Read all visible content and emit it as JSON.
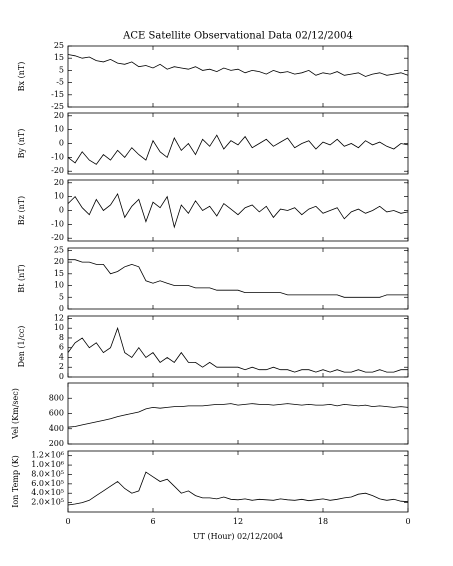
{
  "title": "ACE Satellite Observational Data   02/12/2004",
  "xlabel": "UT (Hour)   02/12/2004",
  "chart_data": [
    {
      "type": "line",
      "ylabel": "Bx (nT)",
      "color": "#000000",
      "x": [
        0,
        0.5,
        1,
        1.5,
        2,
        2.5,
        3,
        3.5,
        4,
        4.5,
        5,
        5.5,
        6,
        6.5,
        7,
        7.5,
        8,
        8.5,
        9,
        9.5,
        10,
        10.5,
        11,
        11.5,
        12,
        12.5,
        13,
        13.5,
        14,
        14.5,
        15,
        15.5,
        16,
        16.5,
        17,
        17.5,
        18,
        18.5,
        19,
        19.5,
        20,
        20.5,
        21,
        21.5,
        22,
        22.5,
        23,
        23.5,
        24
      ],
      "values": [
        18,
        17,
        15,
        16,
        13,
        12,
        14,
        11,
        10,
        12,
        8,
        9,
        7,
        10,
        6,
        8,
        7,
        6,
        8,
        5,
        6,
        4,
        7,
        5,
        6,
        3,
        5,
        4,
        2,
        5,
        3,
        4,
        2,
        3,
        5,
        1,
        3,
        2,
        4,
        1,
        2,
        3,
        0,
        2,
        3,
        1,
        2,
        3,
        1
      ],
      "xlim": [
        0,
        24
      ],
      "ylim": [
        -25,
        25
      ],
      "yticks": [
        -25,
        -15,
        -5,
        5,
        15,
        25
      ]
    },
    {
      "type": "line",
      "ylabel": "By (nT)",
      "color": "#000000",
      "x": [
        0,
        0.5,
        1,
        1.5,
        2,
        2.5,
        3,
        3.5,
        4,
        4.5,
        5,
        5.5,
        6,
        6.5,
        7,
        7.5,
        8,
        8.5,
        9,
        9.5,
        10,
        10.5,
        11,
        11.5,
        12,
        12.5,
        13,
        13.5,
        14,
        14.5,
        15,
        15.5,
        16,
        16.5,
        17,
        17.5,
        18,
        18.5,
        19,
        19.5,
        20,
        20.5,
        21,
        21.5,
        22,
        22.5,
        23,
        23.5,
        24
      ],
      "values": [
        -10,
        -14,
        -6,
        -12,
        -15,
        -8,
        -12,
        -5,
        -10,
        -3,
        -8,
        -12,
        2,
        -6,
        -10,
        4,
        -5,
        0,
        -8,
        3,
        -2,
        6,
        -4,
        2,
        -1,
        5,
        -3,
        0,
        3,
        -2,
        1,
        4,
        -3,
        0,
        2,
        -4,
        1,
        -1,
        3,
        -2,
        0,
        -3,
        2,
        -1,
        1,
        -2,
        -4,
        0,
        -1
      ],
      "xlim": [
        0,
        24
      ],
      "ylim": [
        -22,
        22
      ],
      "yticks": [
        -20,
        -10,
        0,
        10,
        20
      ]
    },
    {
      "type": "line",
      "ylabel": "Bz (nT)",
      "color": "#000000",
      "x": [
        0,
        0.5,
        1,
        1.5,
        2,
        2.5,
        3,
        3.5,
        4,
        4.5,
        5,
        5.5,
        6,
        6.5,
        7,
        7.5,
        8,
        8.5,
        9,
        9.5,
        10,
        10.5,
        11,
        11.5,
        12,
        12.5,
        13,
        13.5,
        14,
        14.5,
        15,
        15.5,
        16,
        16.5,
        17,
        17.5,
        18,
        18.5,
        19,
        19.5,
        20,
        20.5,
        21,
        21.5,
        22,
        22.5,
        23,
        23.5,
        24
      ],
      "values": [
        5,
        10,
        2,
        -3,
        8,
        0,
        4,
        12,
        -5,
        3,
        8,
        -8,
        6,
        2,
        10,
        -12,
        4,
        -2,
        7,
        0,
        3,
        -4,
        5,
        1,
        -3,
        2,
        4,
        -1,
        3,
        -5,
        1,
        0,
        2,
        -3,
        1,
        3,
        -2,
        0,
        2,
        -6,
        -1,
        1,
        -2,
        0,
        3,
        -1,
        0,
        -2,
        -1
      ],
      "xlim": [
        0,
        24
      ],
      "ylim": [
        -22,
        22
      ],
      "yticks": [
        -20,
        -10,
        0,
        10,
        20
      ]
    },
    {
      "type": "line",
      "ylabel": "Bt (nT)",
      "color": "#000000",
      "x": [
        0,
        0.5,
        1,
        1.5,
        2,
        2.5,
        3,
        3.5,
        4,
        4.5,
        5,
        5.5,
        6,
        6.5,
        7,
        7.5,
        8,
        8.5,
        9,
        9.5,
        10,
        10.5,
        11,
        11.5,
        12,
        12.5,
        13,
        13.5,
        14,
        14.5,
        15,
        15.5,
        16,
        16.5,
        17,
        17.5,
        18,
        18.5,
        19,
        19.5,
        20,
        20.5,
        21,
        21.5,
        22,
        22.5,
        23,
        23.5,
        24
      ],
      "values": [
        21,
        21,
        20,
        20,
        19,
        19,
        15,
        16,
        18,
        19,
        18,
        12,
        11,
        12,
        11,
        10,
        10,
        10,
        9,
        9,
        9,
        8,
        8,
        8,
        8,
        7,
        7,
        7,
        7,
        7,
        7,
        6,
        6,
        6,
        6,
        6,
        6,
        6,
        6,
        5,
        5,
        5,
        5,
        5,
        5,
        6,
        6,
        6,
        6
      ],
      "xlim": [
        0,
        24
      ],
      "ylim": [
        0,
        26
      ],
      "yticks": [
        0,
        5,
        10,
        15,
        20,
        25
      ]
    },
    {
      "type": "line",
      "ylabel": "Den (1/cc)",
      "color": "#000000",
      "x": [
        0,
        0.5,
        1,
        1.5,
        2,
        2.5,
        3,
        3.5,
        4,
        4.5,
        5,
        5.5,
        6,
        6.5,
        7,
        7.5,
        8,
        8.5,
        9,
        9.5,
        10,
        10.5,
        11,
        11.5,
        12,
        12.5,
        13,
        13.5,
        14,
        14.5,
        15,
        15.5,
        16,
        16.5,
        17,
        17.5,
        18,
        18.5,
        19,
        19.5,
        20,
        20.5,
        21,
        21.5,
        22,
        22.5,
        23,
        23.5,
        24
      ],
      "values": [
        5,
        7,
        8,
        6,
        7,
        5,
        6,
        10,
        5,
        4,
        6,
        4,
        5,
        3,
        4,
        3,
        5,
        3,
        3,
        2,
        3,
        2,
        2,
        2,
        2,
        1.5,
        2,
        1.5,
        1.5,
        2,
        1.5,
        1.5,
        1,
        1.5,
        1.5,
        1,
        1.5,
        1,
        1.5,
        1,
        1,
        1.5,
        1,
        1,
        1.5,
        1,
        1,
        1.5,
        1.5
      ],
      "xlim": [
        0,
        24
      ],
      "ylim": [
        0,
        12.5
      ],
      "yticks": [
        0,
        2,
        4,
        6,
        8,
        10,
        12
      ]
    },
    {
      "type": "line",
      "ylabel": "Vel (Km/sec)",
      "color": "#000000",
      "x": [
        0,
        0.5,
        1,
        1.5,
        2,
        2.5,
        3,
        3.5,
        4,
        4.5,
        5,
        5.5,
        6,
        6.5,
        7,
        7.5,
        8,
        8.5,
        9,
        9.5,
        10,
        10.5,
        11,
        11.5,
        12,
        12.5,
        13,
        13.5,
        14,
        14.5,
        15,
        15.5,
        16,
        16.5,
        17,
        17.5,
        18,
        18.5,
        19,
        19.5,
        20,
        20.5,
        21,
        21.5,
        22,
        22.5,
        23,
        23.5,
        24
      ],
      "values": [
        420,
        430,
        450,
        470,
        490,
        510,
        530,
        560,
        580,
        600,
        620,
        660,
        680,
        670,
        680,
        690,
        690,
        700,
        700,
        700,
        710,
        720,
        720,
        730,
        710,
        720,
        730,
        720,
        720,
        710,
        720,
        730,
        720,
        710,
        720,
        710,
        710,
        720,
        700,
        720,
        710,
        700,
        710,
        690,
        700,
        690,
        680,
        690,
        680
      ],
      "xlim": [
        0,
        24
      ],
      "ylim": [
        200,
        1000
      ],
      "yticks": [
        200,
        400,
        600,
        800
      ]
    },
    {
      "type": "line",
      "ylabel": "Ion Temp (K)",
      "color": "#000000",
      "x": [
        0,
        0.5,
        1,
        1.5,
        2,
        2.5,
        3,
        3.5,
        4,
        4.5,
        5,
        5.5,
        6,
        6.5,
        7,
        7.5,
        8,
        8.5,
        9,
        9.5,
        10,
        10.5,
        11,
        11.5,
        12,
        12.5,
        13,
        13.5,
        14,
        14.5,
        15,
        15.5,
        16,
        16.5,
        17,
        17.5,
        18,
        18.5,
        19,
        19.5,
        20,
        20.5,
        21,
        21.5,
        22,
        22.5,
        23,
        23.5,
        24
      ],
      "values": [
        150000,
        170000,
        200000,
        250000,
        350000,
        450000,
        550000,
        650000,
        500000,
        400000,
        450000,
        850000,
        750000,
        650000,
        700000,
        550000,
        400000,
        450000,
        350000,
        300000,
        300000,
        280000,
        320000,
        270000,
        260000,
        280000,
        250000,
        270000,
        260000,
        250000,
        280000,
        260000,
        250000,
        270000,
        240000,
        260000,
        280000,
        250000,
        270000,
        300000,
        320000,
        380000,
        400000,
        350000,
        280000,
        250000,
        270000,
        230000,
        220000
      ],
      "xlim": [
        0,
        24
      ],
      "ylim": [
        0,
        1300000
      ],
      "yticks": [
        {
          "value": 200000,
          "label": "2.0×10⁵"
        },
        {
          "value": 400000,
          "label": "4.0×10⁵"
        },
        {
          "value": 600000,
          "label": "6.0×10⁵"
        },
        {
          "value": 800000,
          "label": "8.0×10⁵"
        },
        {
          "value": 1000000,
          "label": "1.0×10⁶"
        },
        {
          "value": 1200000,
          "label": "1.2×10⁶"
        }
      ],
      "xticks": [
        0,
        6,
        12,
        18,
        {
          "value": 24,
          "label": "0"
        }
      ]
    }
  ]
}
